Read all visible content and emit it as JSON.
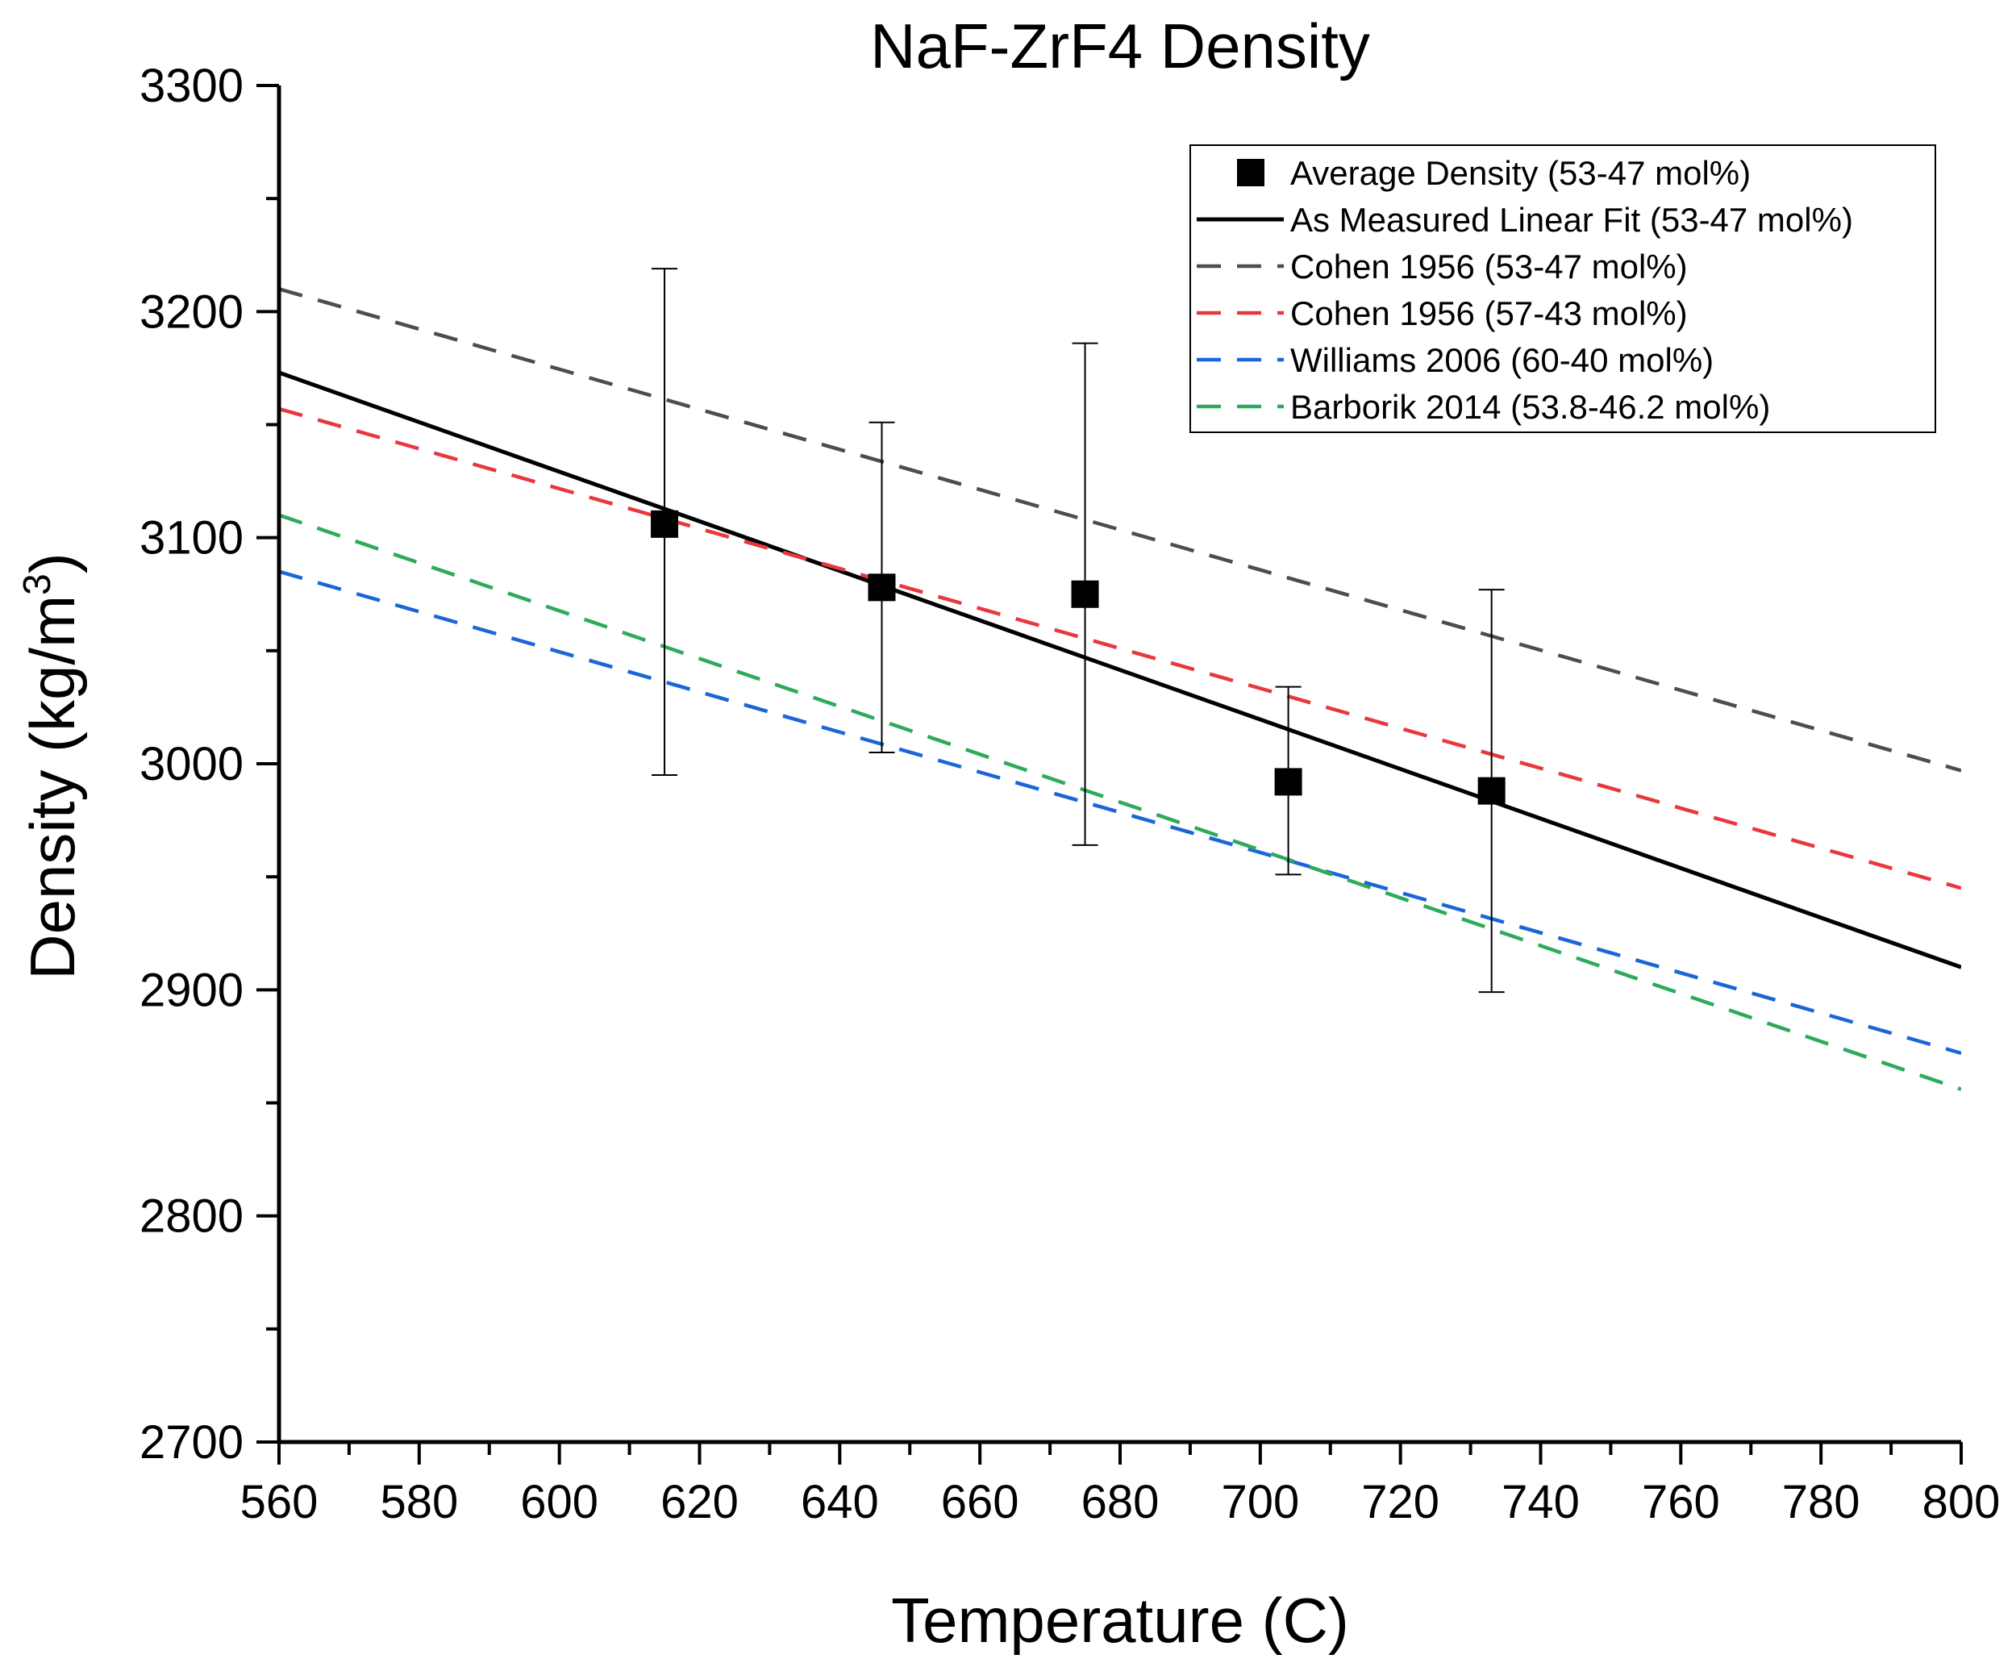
{
  "chart_data": {
    "type": "line",
    "title": "NaF-ZrF4 Density",
    "xlabel": "Temperature (C)",
    "ylabel_main": "Density (kg/m",
    "ylabel_sup": "3",
    "ylabel_close": ")",
    "xlim": [
      560,
      800
    ],
    "ylim": [
      2700,
      3300
    ],
    "xticks": [
      "560",
      "580",
      "600",
      "620",
      "640",
      "660",
      "680",
      "700",
      "720",
      "740",
      "760",
      "780",
      "800"
    ],
    "yticks": [
      "2700",
      "2800",
      "2900",
      "3000",
      "3100",
      "3200",
      "3300"
    ],
    "grid": false,
    "legend_position": "top-right",
    "points": {
      "name": "Average Density (53-47 mol%)",
      "color": "#000000",
      "data": [
        {
          "x": 615,
          "y": 3106,
          "err_low": 2995,
          "err_high": 3219
        },
        {
          "x": 646,
          "y": 3078,
          "err_low": 3005,
          "err_high": 3151
        },
        {
          "x": 675,
          "y": 3075,
          "err_low": 2964,
          "err_high": 3186
        },
        {
          "x": 704,
          "y": 2992,
          "err_low": 2951,
          "err_high": 3034
        },
        {
          "x": 733,
          "y": 2988,
          "err_low": 2899,
          "err_high": 3077
        }
      ]
    },
    "series": [
      {
        "name": "As Measured Linear Fit (53-47 mol%)",
        "color": "#000000",
        "style": "solid",
        "x": [
          560,
          800
        ],
        "y": [
          3173,
          2910
        ]
      },
      {
        "name": "Cohen 1956 (53-47 mol%)",
        "color": "#4d4d4d",
        "style": "dashed",
        "x": [
          560,
          800
        ],
        "y": [
          3210,
          2997
        ]
      },
      {
        "name": "Cohen 1956 (57-43 mol%)",
        "color": "#e8383d",
        "style": "dashed",
        "x": [
          560,
          800
        ],
        "y": [
          3157,
          2945
        ]
      },
      {
        "name": "Williams 2006 (60-40 mol%)",
        "color": "#1a66d9",
        "style": "dashed",
        "x": [
          560,
          800
        ],
        "y": [
          3085,
          2872
        ]
      },
      {
        "name": "Barborik 2014 (53.8-46.2 mol%)",
        "color": "#2eaa5c",
        "style": "dashed",
        "x": [
          560,
          800
        ],
        "y": [
          3110,
          2856
        ]
      }
    ]
  }
}
